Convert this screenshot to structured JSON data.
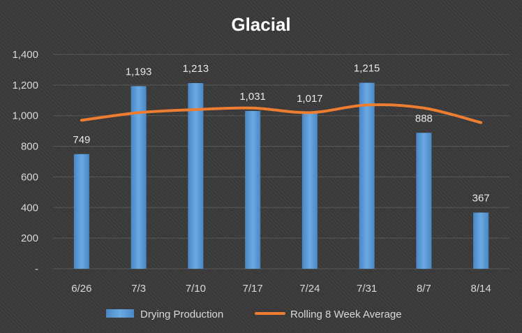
{
  "chart_data": {
    "type": "bar",
    "title": "Glacial",
    "xlabel": "",
    "ylabel": "",
    "categories": [
      "6/26",
      "7/3",
      "7/10",
      "7/17",
      "7/24",
      "7/31",
      "8/7",
      "8/14"
    ],
    "y_ticks": [
      "-",
      "200",
      "400",
      "600",
      "800",
      "1,000",
      "1,200",
      "1,400"
    ],
    "ylim": [
      0,
      1400
    ],
    "grid": true,
    "legend_position": "bottom",
    "series": [
      {
        "name": "Drying Production",
        "type": "bar",
        "color": "#5b9bd5",
        "values": [
          749,
          1193,
          1213,
          1031,
          1017,
          1215,
          888,
          367
        ],
        "labels": [
          "749",
          "1,193",
          "1,213",
          "1,031",
          "1,017",
          "1,215",
          "888",
          "367"
        ]
      },
      {
        "name": "Rolling 8 Week Average",
        "type": "line",
        "color": "#ed7d31",
        "values": [
          970,
          1020,
          1040,
          1050,
          1020,
          1070,
          1050,
          955
        ]
      }
    ]
  }
}
